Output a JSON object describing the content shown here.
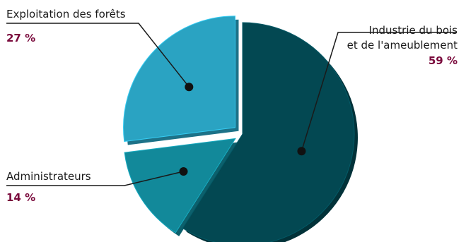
{
  "chart_data": {
    "type": "pie",
    "title": "",
    "slices": [
      {
        "label": "Industrie du bois et de l'ameublement",
        "label_lines": [
          "Industrie du bois",
          "et de  l'ameublement"
        ],
        "value": 59,
        "value_label": "59 %",
        "color": "#034852"
      },
      {
        "label": "Administrateurs",
        "label_lines": [
          "Administrateurs"
        ],
        "value": 14,
        "value_label": "14 %",
        "color": "#12899a"
      },
      {
        "label": "Exploitation des forêts",
        "label_lines": [
          "Exploitation des forêts"
        ],
        "value": 27,
        "value_label": "27 %",
        "color": "#2aa3c2"
      }
    ],
    "legend": "none",
    "percent_color": "#7a0a3c"
  }
}
